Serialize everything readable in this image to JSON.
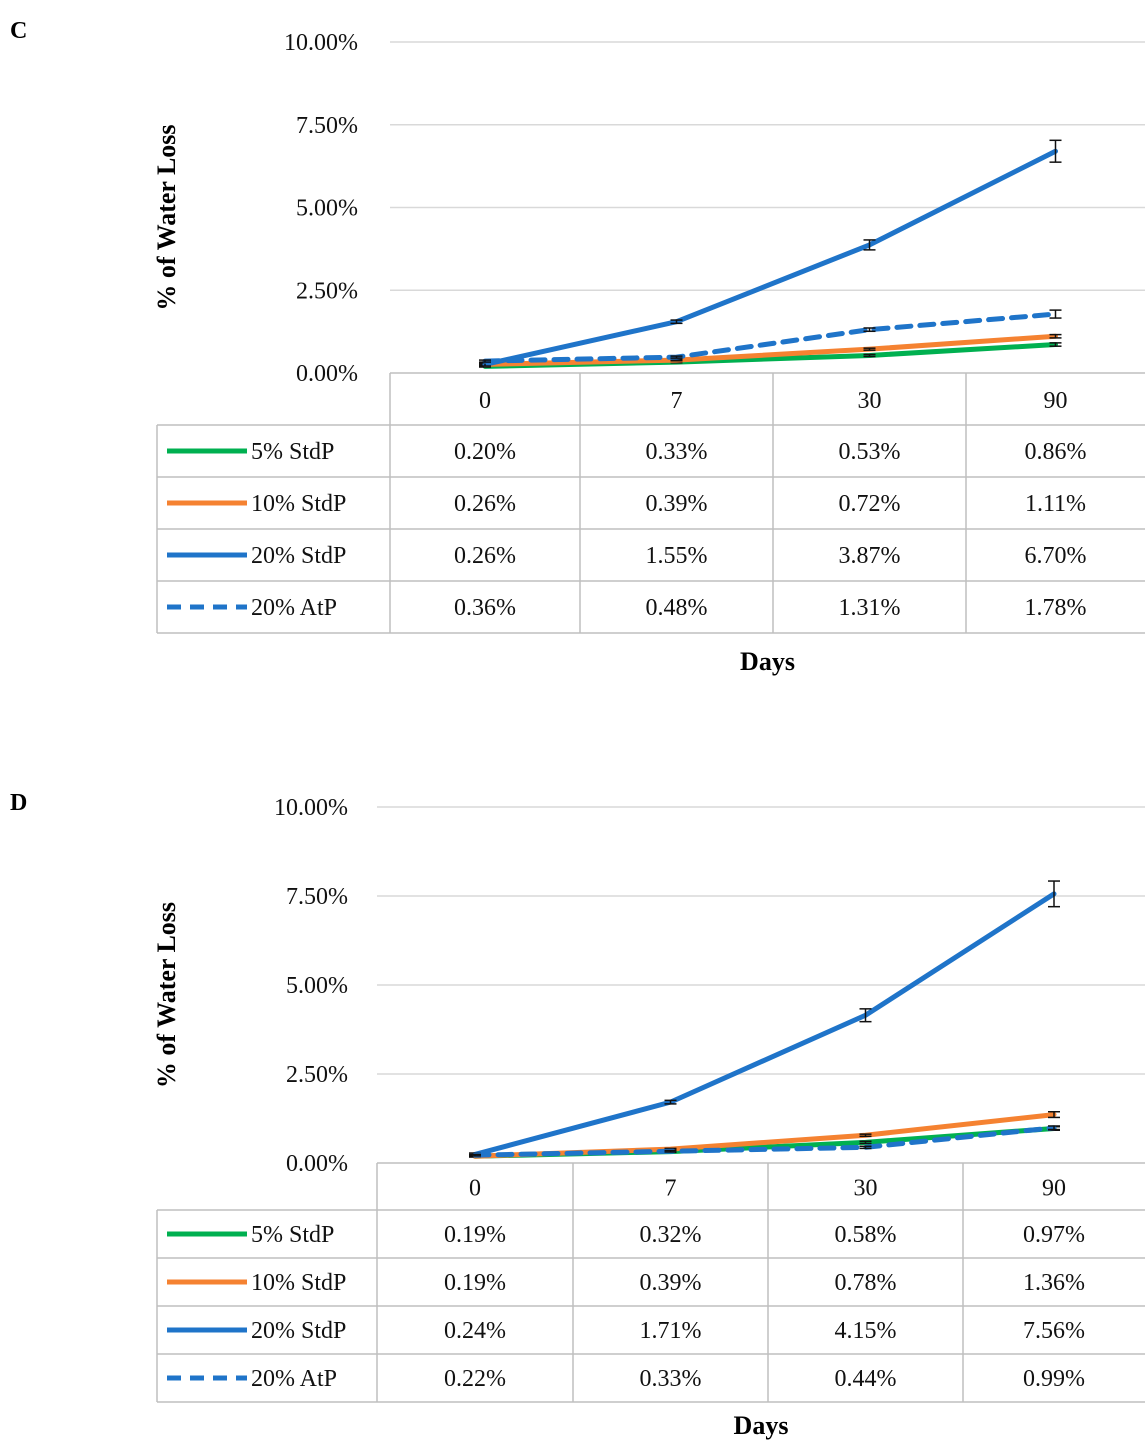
{
  "chart_data": [
    {
      "panel": "C",
      "type": "line",
      "categories": [
        "0",
        "7",
        "30",
        "90"
      ],
      "xlabel": "Days",
      "ylabel": "% of Water Loss",
      "ylim": [
        0,
        10
      ],
      "yticks": [
        "0.00%",
        "2.50%",
        "5.00%",
        "7.50%",
        "10.00%"
      ],
      "grid": true,
      "legend": "data-table",
      "series": [
        {
          "name": "5% StdP",
          "color": "#00b050",
          "dashed": false,
          "values": [
            0.2,
            0.33,
            0.53,
            0.86
          ],
          "labels": [
            "0.20%",
            "0.33%",
            "0.53%",
            "0.86%"
          ],
          "errors": [
            0.02,
            0.02,
            0.03,
            0.05
          ]
        },
        {
          "name": "10% StdP",
          "color": "#f58231",
          "dashed": false,
          "values": [
            0.26,
            0.39,
            0.72,
            1.11
          ],
          "labels": [
            "0.26%",
            "0.39%",
            "0.72%",
            "1.11%"
          ],
          "errors": [
            0.02,
            0.02,
            0.03,
            0.05
          ]
        },
        {
          "name": "20% StdP",
          "color": "#1f74c9",
          "dashed": false,
          "values": [
            0.26,
            1.55,
            3.87,
            6.7
          ],
          "labels": [
            "0.26%",
            "1.55%",
            "3.87%",
            "6.70%"
          ],
          "errors": [
            0.05,
            0.05,
            0.15,
            0.33
          ]
        },
        {
          "name": "20% AtP",
          "color": "#1f74c9",
          "dashed": true,
          "values": [
            0.36,
            0.48,
            1.31,
            1.78
          ],
          "labels": [
            "0.36%",
            "0.48%",
            "1.31%",
            "1.78%"
          ],
          "errors": [
            0.03,
            0.03,
            0.05,
            0.12
          ]
        }
      ]
    },
    {
      "panel": "D",
      "type": "line",
      "categories": [
        "0",
        "7",
        "30",
        "90"
      ],
      "xlabel": "Days",
      "ylabel": "% of Water Loss",
      "ylim": [
        0,
        10
      ],
      "yticks": [
        "0.00%",
        "2.50%",
        "5.00%",
        "7.50%",
        "10.00%"
      ],
      "grid": true,
      "legend": "data-table",
      "series": [
        {
          "name": "5% StdP",
          "color": "#00b050",
          "dashed": false,
          "values": [
            0.19,
            0.32,
            0.58,
            0.97
          ],
          "labels": [
            "0.19%",
            "0.32%",
            "0.58%",
            "0.97%"
          ],
          "errors": [
            0.02,
            0.02,
            0.03,
            0.05
          ]
        },
        {
          "name": "10% StdP",
          "color": "#f58231",
          "dashed": false,
          "values": [
            0.19,
            0.39,
            0.78,
            1.36
          ],
          "labels": [
            "0.19%",
            "0.39%",
            "0.78%",
            "1.36%"
          ],
          "errors": [
            0.02,
            0.02,
            0.03,
            0.08
          ]
        },
        {
          "name": "20% StdP",
          "color": "#1f74c9",
          "dashed": false,
          "values": [
            0.24,
            1.71,
            4.15,
            7.56
          ],
          "labels": [
            "0.24%",
            "1.71%",
            "4.15%",
            "7.56%"
          ],
          "errors": [
            0.04,
            0.05,
            0.18,
            0.36
          ]
        },
        {
          "name": "20% AtP",
          "color": "#1f74c9",
          "dashed": true,
          "values": [
            0.22,
            0.33,
            0.44,
            0.99
          ],
          "labels": [
            "0.22%",
            "0.33%",
            "0.44%",
            "0.99%"
          ],
          "errors": [
            0.02,
            0.02,
            0.03,
            0.05
          ]
        }
      ]
    }
  ]
}
